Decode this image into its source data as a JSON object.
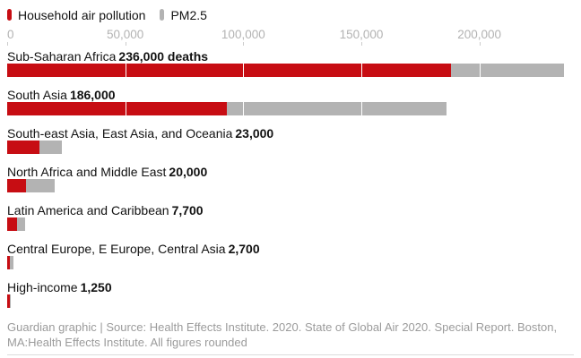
{
  "legend": {
    "items": [
      {
        "label": "Household air pollution",
        "color": "#c70d13"
      },
      {
        "label": "PM2.5",
        "color": "#b3b3b3"
      }
    ]
  },
  "axis": {
    "ticks": [
      {
        "label": "0",
        "value": 0
      },
      {
        "label": "50,000",
        "value": 50000
      },
      {
        "label": "100,000",
        "value": 100000
      },
      {
        "label": "150,000",
        "value": 150000
      },
      {
        "label": "200,000",
        "value": 200000
      }
    ],
    "max_value": 240000
  },
  "chart_data": {
    "type": "bar",
    "orientation": "horizontal",
    "stacked": true,
    "grid": true,
    "legend_position": "top",
    "xlim": [
      0,
      240000
    ],
    "categories": [
      "Sub-Saharan Africa",
      "South Asia",
      "South-east Asia, East Asia, and Oceania",
      "North Africa and Middle East",
      "Latin America and Caribbean",
      "Central Europe, E Europe, Central Asia",
      "High-income"
    ],
    "value_labels": [
      "236,000 deaths",
      "186,000",
      "23,000",
      "20,000",
      "7,700",
      "2,700",
      "1,250"
    ],
    "totals": [
      236000,
      186000,
      23000,
      20000,
      7700,
      2700,
      1250
    ],
    "series": [
      {
        "name": "Household air pollution",
        "color": "#c70d13",
        "values": [
          188000,
          93000,
          13500,
          8000,
          4000,
          1100,
          1000
        ]
      },
      {
        "name": "PM2.5",
        "color": "#b3b3b3",
        "values": [
          48000,
          93000,
          9500,
          12000,
          3700,
          1600,
          250
        ]
      }
    ]
  },
  "footer": {
    "line1": "Guardian graphic | Source: Health Effects Institute. 2020. State of Global Air 2020. Special Report. Boston,",
    "line2": "MA:Health Effects Institute. All figures rounded"
  }
}
